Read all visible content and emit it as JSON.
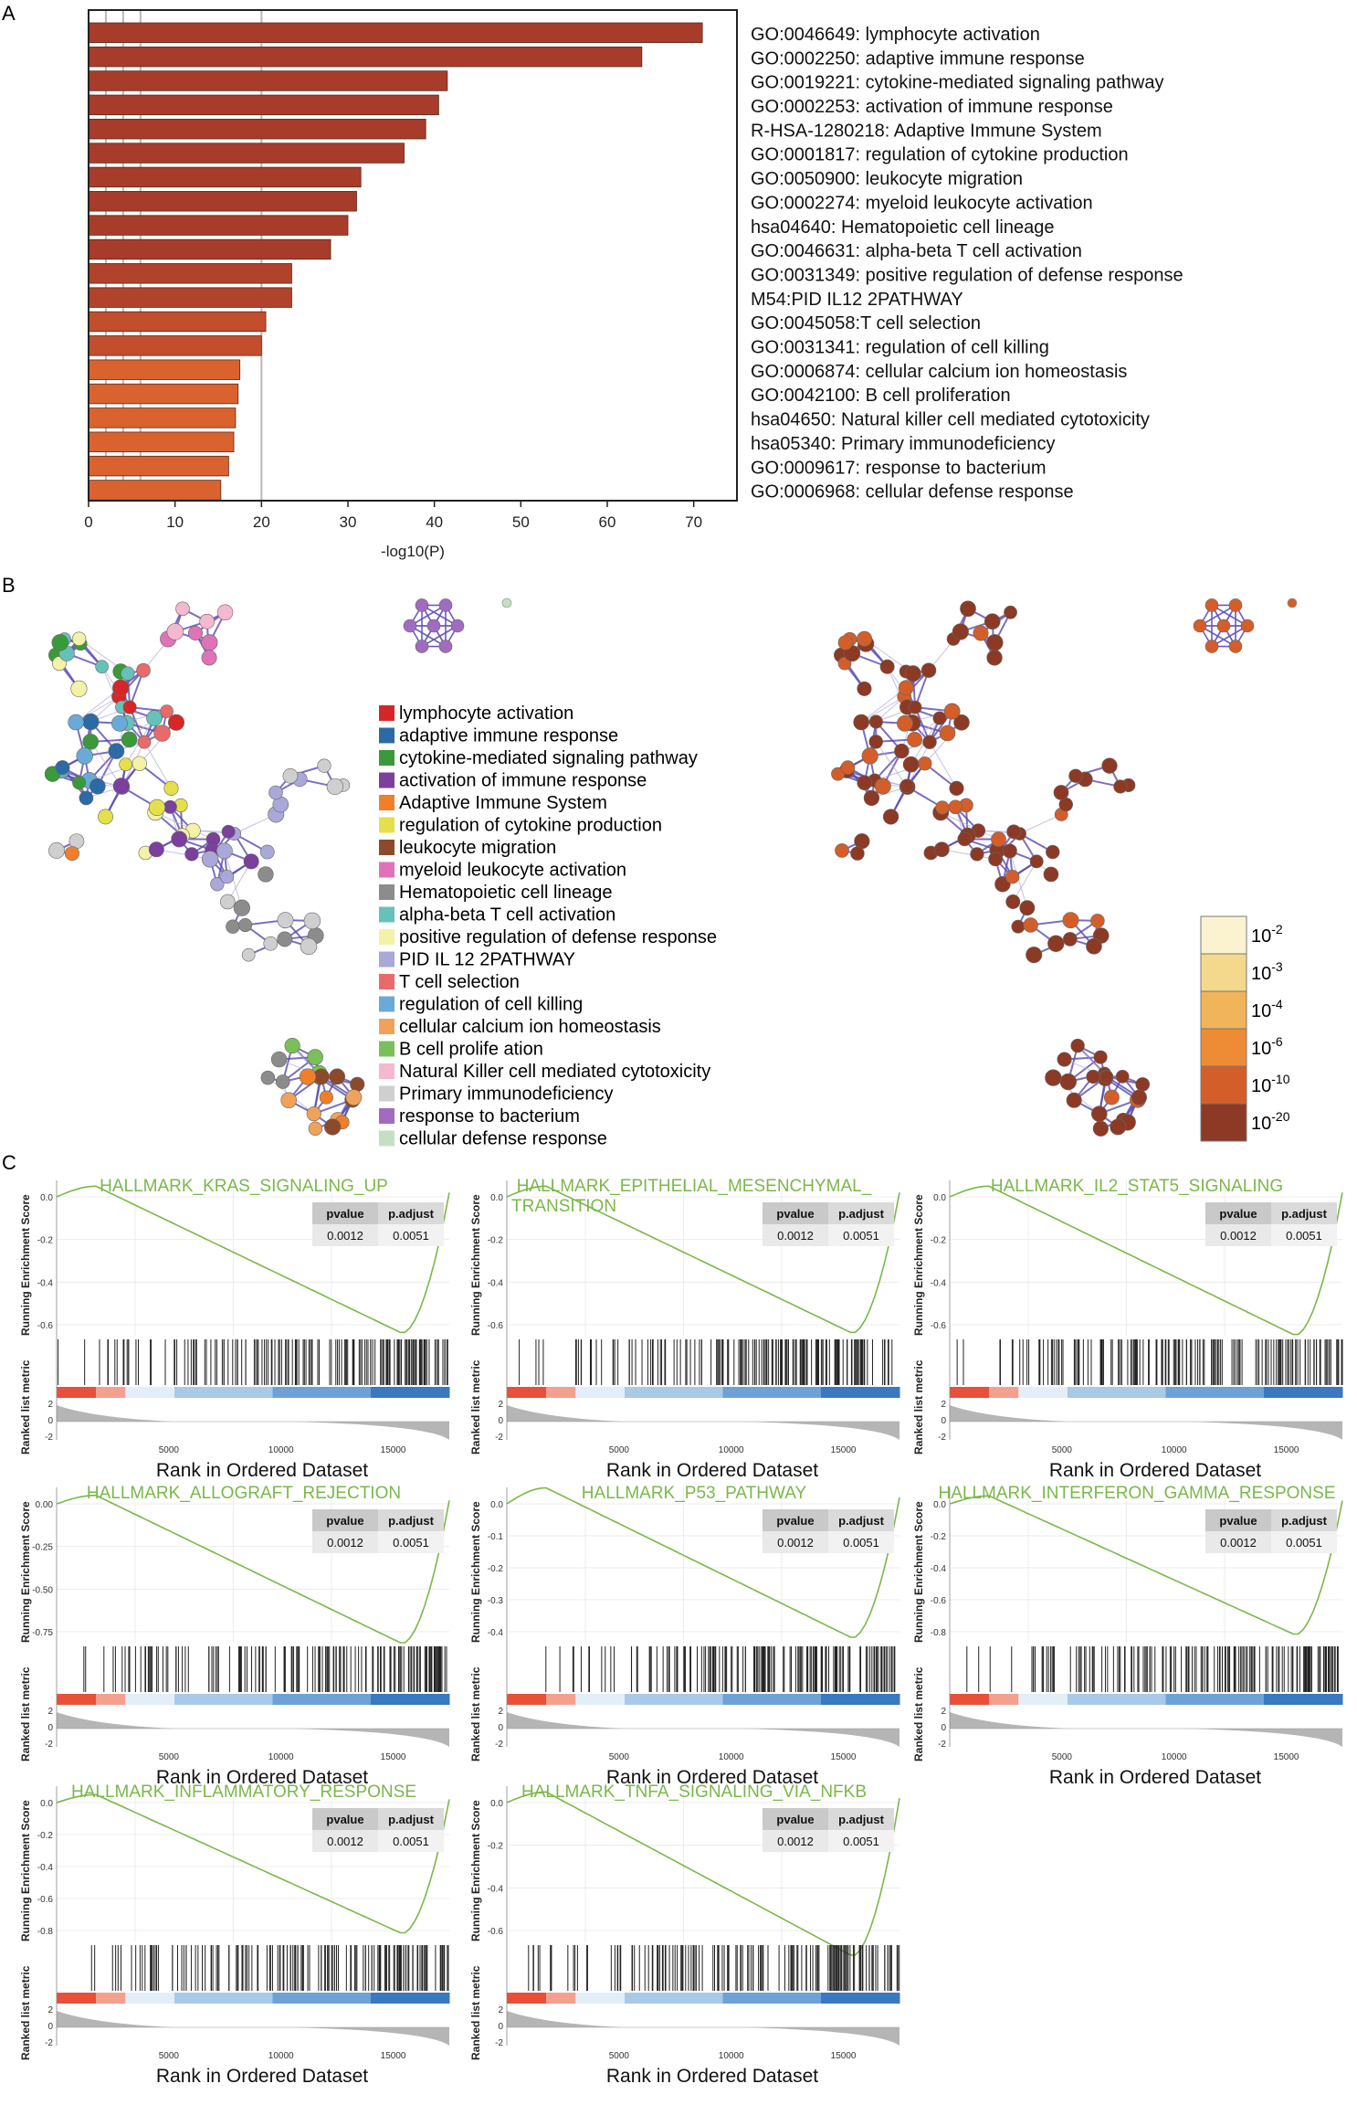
{
  "panels": {
    "a": "A",
    "b": "B",
    "c": "C"
  },
  "chart_data": [
    {
      "type": "bar",
      "orientation": "horizontal",
      "xlabel": "-log10(P)",
      "xlim": [
        0,
        75
      ],
      "xticks": [
        "0",
        "10",
        "20",
        "30",
        "40",
        "50",
        "60",
        "70"
      ],
      "categories": [
        "GO:0046649: lymphocyte activation",
        "GO:0002250: adaptive immune response",
        "GO:0019221: cytokine-mediated signaling pathway",
        "GO:0002253: activation of immune response",
        "R-HSA-1280218: Adaptive Immune System",
        "GO:0001817: regulation of cytokine production",
        "GO:0050900: leukocyte migration",
        "GO:0002274: myeloid leukocyte activation",
        "hsa04640: Hematopoietic cell lineage",
        "GO:0046631: alpha-beta T cell activation",
        "GO:0031349: positive regulation of defense response",
        "M54:PID IL12 2PATHWAY",
        "GO:0045058:T cell selection",
        "GO:0031341: regulation of cell killing",
        "GO:0006874: cellular calcium ion homeostasis",
        "GO:0042100: B cell proliferation",
        "hsa04650: Natural killer cell mediated cytotoxicity",
        "hsa05340: Primary immunodeficiency",
        "GO:0009617: response to bacterium",
        "GO:0006968: cellular defense response"
      ],
      "values": [
        71,
        64,
        41.5,
        40.5,
        39,
        36.5,
        31.5,
        31,
        30,
        28,
        23.5,
        23.5,
        20.5,
        20,
        17.5,
        17.3,
        17,
        16.8,
        16.2,
        15.3
      ],
      "colors": [
        "#a83c2a",
        "#a83c2a",
        "#a83c2a",
        "#a83c2a",
        "#a83c2a",
        "#a83c2a",
        "#a83c2a",
        "#a83c2a",
        "#a83c2a",
        "#a83c2a",
        "#b0432b",
        "#b0432b",
        "#c24e2e",
        "#c24e2e",
        "#d9622f",
        "#d9622f",
        "#d9622f",
        "#d9622f",
        "#d9622f",
        "#d9622f"
      ]
    },
    {
      "type": "network",
      "legend": [
        {
          "label": "lymphocyte activation",
          "color": "#d62728"
        },
        {
          "label": "adaptive immune response",
          "color": "#2b6aa6"
        },
        {
          "label": "cytokine-mediated signaling pathway",
          "color": "#3a9a3a"
        },
        {
          "label": "activation of immune response",
          "color": "#7b3f9e"
        },
        {
          "label": "Adaptive Immune System",
          "color": "#f07f2a"
        },
        {
          "label": "regulation of cytokine production",
          "color": "#e5e04a"
        },
        {
          "label": "leukocyte migration",
          "color": "#8b4a2b"
        },
        {
          "label": "myeloid leukocyte activation",
          "color": "#e072b8"
        },
        {
          "label": "Hematopoietic cell lineage",
          "color": "#8c8c8c"
        },
        {
          "label": "alpha-beta T cell activation",
          "color": "#66c2b8"
        },
        {
          "label": "positive regulation of defense response",
          "color": "#f3f2a6"
        },
        {
          "label": "PID IL 12 2PATHWAY",
          "color": "#aaa8d8"
        },
        {
          "label": "T cell selection",
          "color": "#e86a6a"
        },
        {
          "label": "regulation of cell killing",
          "color": "#6aaad8"
        },
        {
          "label": "cellular calcium ion homeostasis",
          "color": "#f0a25a"
        },
        {
          "label": "B cell prolife ation",
          "color": "#7bbf5a"
        },
        {
          "label": "Natural Killer cell mediated cytotoxicity",
          "color": "#f4b8d0"
        },
        {
          "label": "Primary immunodeficiency",
          "color": "#cfcfcf"
        },
        {
          "label": "response to bacterium",
          "color": "#a16bc0"
        },
        {
          "label": "cellular defense response",
          "color": "#c4e0c4"
        }
      ],
      "pvalue_scale": [
        {
          "label": "10",
          "exp": "-2",
          "color": "#fbf3d0"
        },
        {
          "label": "10",
          "exp": "-3",
          "color": "#f4d98c"
        },
        {
          "label": "10",
          "exp": "-4",
          "color": "#f0b45a"
        },
        {
          "label": "10",
          "exp": "-6",
          "color": "#ee8b35"
        },
        {
          "label": "10",
          "exp": "-10",
          "color": "#d45e2a"
        },
        {
          "label": "10",
          "exp": "-20",
          "color": "#8c3a25"
        }
      ]
    },
    {
      "type": "line",
      "subtype": "gsea-enrichment",
      "xlabel": "Rank in Ordered Dataset",
      "ylabel_top": "Running Enrichment Score",
      "ylabel_bottom": "Ranked list metric",
      "xticks": [
        "5000",
        "10000",
        "15000"
      ],
      "metric_ticks": [
        "2",
        "0",
        "-2"
      ],
      "table_headers": [
        "pvalue",
        "p.adjust"
      ],
      "plots": [
        {
          "title": "HALLMARK_KRAS_SIGNALING_UP",
          "pvalue": "0.0012",
          "padjust": "0.0051",
          "yticks": [
            "0.0",
            "-0.2",
            "-0.4",
            "-0.6"
          ],
          "min": -0.64
        },
        {
          "title": "HALLMARK_EPITHELIAL_MESENCHYMAL_",
          "title2": "TRANSITION",
          "pvalue": "0.0012",
          "padjust": "0.0051",
          "yticks": [
            "0.0",
            "-0.2",
            "-0.4",
            "-0.6"
          ],
          "min": -0.64
        },
        {
          "title": "HALLMARK_IL2_STAT5_SIGNALING",
          "pvalue": "0.0012",
          "padjust": "0.0051",
          "yticks": [
            "0.0",
            "-0.2",
            "-0.4",
            "-0.6"
          ],
          "min": -0.65
        },
        {
          "title": "HALLMARK_ALLOGRAFT_REJECTION",
          "pvalue": "0.0012",
          "padjust": "0.0051",
          "yticks": [
            "0.00",
            "-0.25",
            "-0.50",
            "-0.75"
          ],
          "min": -0.82
        },
        {
          "title": "HALLMARK_P53_PATHWAY",
          "pvalue": "0.0012",
          "padjust": "0.0051",
          "yticks": [
            "0.0",
            "-0.1",
            "-0.2",
            "-0.3",
            "-0.4"
          ],
          "min": -0.42
        },
        {
          "title": "HALLMARK_INTERFERON_GAMMA_RESPONSE",
          "pvalue": "0.0012",
          "padjust": "0.0051",
          "yticks": [
            "0.0",
            "-0.2",
            "-0.4",
            "-0.6",
            "-0.8"
          ],
          "min": -0.82
        },
        {
          "title": "HALLMARK_INFLAMMATORY_RESPONSE",
          "pvalue": "0.0012",
          "padjust": "0.0051",
          "yticks": [
            "0.0",
            "-0.2",
            "-0.4",
            "-0.6",
            "-0.8"
          ],
          "min": -0.82
        },
        {
          "title": "HALLMARK_TNFA_SIGNALING_VIA_NFKB",
          "pvalue": "0.0012",
          "padjust": "0.0051",
          "yticks": [
            "0.0",
            "-0.2",
            "-0.4",
            "-0.6"
          ],
          "min": -0.72
        }
      ]
    }
  ]
}
